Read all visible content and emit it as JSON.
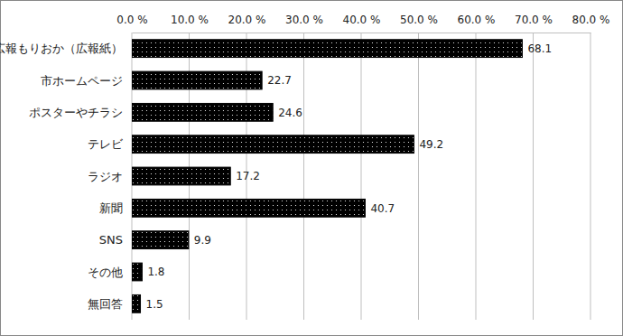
{
  "chart_data": {
    "type": "bar",
    "orientation": "horizontal",
    "categories": [
      "広報もりおか（広報紙）",
      "市ホームページ",
      "ポスターやチラシ",
      "テレビ",
      "ラジオ",
      "新聞",
      "SNS",
      "その他",
      "無回答"
    ],
    "values": [
      68.1,
      22.7,
      24.6,
      49.2,
      17.2,
      40.7,
      9.9,
      1.8,
      1.5
    ],
    "color": "#000000",
    "xlim": [
      0,
      80
    ],
    "xticks": [
      {
        "value": 0,
        "label": "0.0 %"
      },
      {
        "value": 10,
        "label": "10.0 %"
      },
      {
        "value": 20,
        "label": "20.0 %"
      },
      {
        "value": 30,
        "label": "30.0 %"
      },
      {
        "value": 40,
        "label": "40.0 %"
      },
      {
        "value": 50,
        "label": "50.0 %"
      },
      {
        "value": 60,
        "label": "60.0 %"
      },
      {
        "value": 70,
        "label": "70.0 %"
      },
      {
        "value": 80,
        "label": "80.0 %"
      }
    ],
    "grid": true,
    "data_labels": true
  }
}
